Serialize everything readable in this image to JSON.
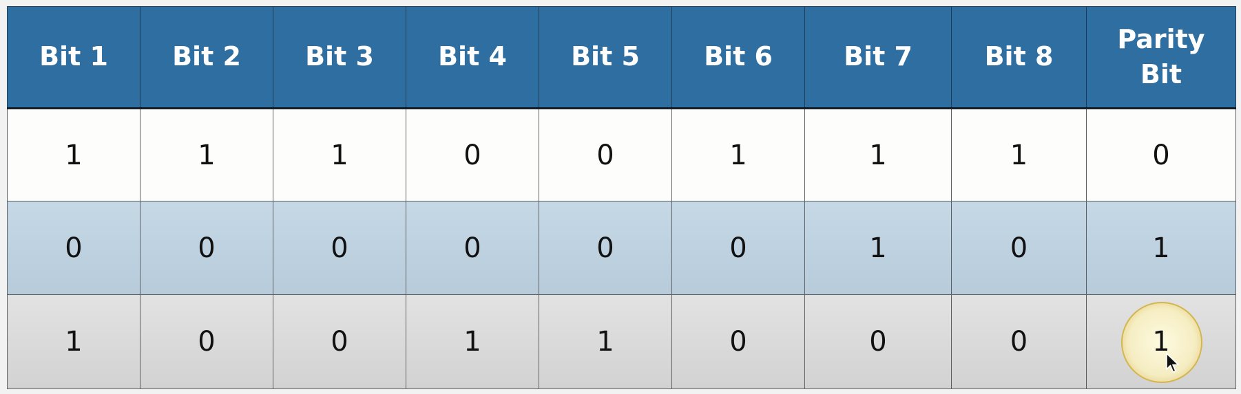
{
  "table": {
    "headers": [
      "Bit 1",
      "Bit 2",
      "Bit 3",
      "Bit 4",
      "Bit 5",
      "Bit 6",
      "Bit 7",
      "Bit 8",
      "Parity Bit"
    ],
    "rows": [
      [
        "1",
        "1",
        "1",
        "0",
        "0",
        "1",
        "1",
        "1",
        "0"
      ],
      [
        "0",
        "0",
        "0",
        "0",
        "0",
        "0",
        "1",
        "0",
        "1"
      ],
      [
        "1",
        "0",
        "0",
        "1",
        "1",
        "0",
        "0",
        "0",
        "1"
      ]
    ]
  },
  "colors": {
    "header_bg": "#2f6ea0",
    "header_text": "#ffffff",
    "row_1_bg": "#fdfdfb",
    "row_2_bg": "#c6d8e6",
    "row_3_bg": "#dadada",
    "highlight_ring": "#d3b64f"
  },
  "icons": {
    "cursor": "mouse-pointer-icon",
    "highlight": "click-highlight-ring"
  }
}
